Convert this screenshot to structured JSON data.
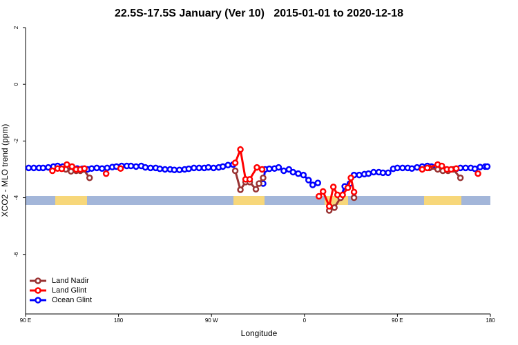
{
  "chart_data": {
    "type": "line",
    "title": "22.5S-17.5S January (Ver 10)   2015-01-01 to 2020-12-18",
    "x_label": "Longitude",
    "y_label": "XCO2 - MLO trend (ppm)",
    "xlim": [
      90,
      540
    ],
    "ylim": [
      -8.1,
      2
    ],
    "xticks": [
      {
        "value": 90,
        "label": "90 E"
      },
      {
        "value": 180,
        "label": "180"
      },
      {
        "value": 270,
        "label": "90 W"
      },
      {
        "value": 360,
        "label": "0"
      },
      {
        "value": 450,
        "label": "90 E"
      },
      {
        "value": 540,
        "label": "180"
      }
    ],
    "yticks": [
      -6,
      -4,
      -2,
      0,
      2
    ],
    "grid": false,
    "legend": "bottom-left",
    "series": [
      {
        "name": "Land Nadir",
        "color": "#993333",
        "x": [
          129,
          134,
          139,
          143,
          146,
          152,
          220,
          293,
          298,
          303,
          307,
          313,
          316,
          320,
          350,
          384,
          389,
          395,
          400,
          408,
          450,
          481,
          489,
          494,
          499,
          504,
          511
        ],
        "values": [
          -3.0,
          -3.07,
          -3.05,
          -3.05,
          -3.0,
          -3.3,
          null,
          -3.05,
          -3.72,
          -3.45,
          -3.45,
          -3.7,
          -3.5,
          -3.3,
          null,
          -4.45,
          -4.35,
          -4.0,
          null,
          -4.0,
          null,
          -2.95,
          -3.0,
          -3.05,
          -3.05,
          -3.0,
          -3.3
        ]
      },
      {
        "name": "Land Glint",
        "color": "#ff0000",
        "x": [
          116,
          121,
          125,
          130,
          135,
          139,
          143,
          147,
          158,
          168,
          175,
          182,
          240,
          293,
          298,
          303,
          307,
          314,
          319,
          350,
          374,
          378,
          384,
          388,
          392,
          397,
          402,
          405,
          408,
          440,
          474,
          479,
          489,
          493,
          498,
          502,
          507,
          520,
          528
        ],
        "values": [
          -3.05,
          -2.97,
          -2.98,
          -2.83,
          -2.9,
          -3.0,
          -3.0,
          -2.97,
          null,
          -3.15,
          null,
          -2.97,
          null,
          -2.77,
          -2.3,
          -3.35,
          -3.35,
          -2.93,
          -3.0,
          null,
          -3.95,
          -3.78,
          -4.3,
          -3.62,
          -3.9,
          -3.9,
          -3.65,
          -3.3,
          -3.8,
          null,
          -3.0,
          -2.95,
          -2.83,
          -2.88,
          -3.0,
          -3.0,
          -2.97,
          null,
          -3.15
        ]
      },
      {
        "name": "Ocean Glint",
        "color": "#0000ff",
        "x": [
          93,
          98,
          103,
          107,
          112,
          117,
          121,
          126,
          131,
          135,
          140,
          145,
          150,
          154,
          159,
          164,
          169,
          174,
          178,
          183,
          188,
          192,
          197,
          202,
          206,
          211,
          216,
          220,
          225,
          230,
          234,
          239,
          244,
          248,
          253,
          258,
          263,
          267,
          272,
          277,
          281,
          286,
          291,
          305,
          320,
          322,
          326,
          331,
          335,
          340,
          345,
          349,
          354,
          359,
          364,
          368,
          373,
          384,
          395,
          399,
          404,
          408,
          413,
          418,
          422,
          427,
          432,
          436,
          441,
          446,
          450,
          455,
          460,
          464,
          469,
          474,
          479,
          483,
          488,
          507,
          511,
          516,
          521,
          525,
          530,
          535,
          537
        ],
        "values": [
          -2.95,
          -2.95,
          -2.95,
          -2.95,
          -2.93,
          -2.9,
          -2.88,
          -2.9,
          -2.92,
          -2.95,
          -2.97,
          -2.98,
          -3.0,
          -2.97,
          -2.95,
          -2.97,
          -2.95,
          -2.92,
          -2.9,
          -2.88,
          -2.88,
          -2.88,
          -2.9,
          -2.88,
          -2.93,
          -2.95,
          -2.95,
          -2.98,
          -3.0,
          -3.0,
          -3.02,
          -3.02,
          -3.0,
          -2.98,
          -2.95,
          -2.95,
          -2.95,
          -2.93,
          -2.95,
          -2.93,
          -2.9,
          -2.85,
          -2.83,
          null,
          -3.5,
          -3.0,
          -2.98,
          -2.97,
          -2.93,
          -3.05,
          -3.0,
          -3.1,
          -3.15,
          -3.2,
          -3.38,
          -3.55,
          -3.48,
          null,
          -4.0,
          -3.6,
          -3.5,
          -3.2,
          -3.2,
          -3.17,
          -3.15,
          -3.1,
          -3.1,
          -3.12,
          -3.12,
          -2.98,
          -2.95,
          -2.95,
          -2.95,
          -2.97,
          -2.93,
          -2.9,
          -2.88,
          -2.9,
          -2.9,
          -2.98,
          -2.95,
          -2.95,
          -2.95,
          -2.98,
          -2.92,
          -2.9,
          -2.9
        ]
      }
    ]
  }
}
